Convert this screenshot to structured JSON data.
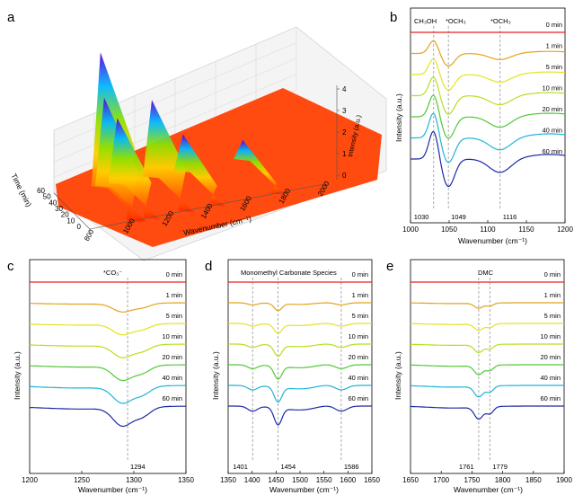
{
  "panel_letters": [
    "a",
    "b",
    "c",
    "d",
    "e"
  ],
  "chart_data": [
    {
      "panel": "a",
      "type": "surface3d",
      "xlabel": "Wavenumber (cm⁻¹)",
      "ylabel": "Time (min)",
      "zlabel": "Intensity (a.u.)",
      "x_ticks": [
        "800",
        "1000",
        "1200",
        "1400",
        "1600",
        "1800",
        "2000"
      ],
      "y_ticks": [
        "0",
        "10",
        "20",
        "30",
        "40",
        "50",
        "60"
      ],
      "z_ticks": [
        "0",
        "1",
        "2",
        "3",
        "4"
      ],
      "peaks_x": [
        1030,
        1049,
        1116,
        1294,
        1454,
        1761
      ],
      "peak_heights": [
        4.6,
        3.0,
        2.2,
        2.6,
        1.2,
        0.6
      ]
    },
    {
      "panel": "b",
      "type": "line",
      "xlabel": "Wavenumber (cm⁻¹)",
      "ylabel": "Intensity (a.u.)",
      "xlim": [
        1000,
        1200
      ],
      "x_ticks": [
        1000,
        1050,
        1100,
        1150,
        1200
      ],
      "series_names": [
        "0 min",
        "1 min",
        "5 min",
        "10 min",
        "20 min",
        "40 min",
        "60 min"
      ],
      "annotations": [
        "CH₃OH",
        "*OCH₃",
        "*OCH₃"
      ],
      "dashed_lines": [
        1030,
        1049,
        1116
      ],
      "dashed_labels": [
        "1030",
        "1049",
        "1116"
      ]
    },
    {
      "panel": "c",
      "type": "line",
      "xlabel": "Wavenumber (cm⁻¹)",
      "ylabel": "Intensity (a.u.)",
      "xlim": [
        1200,
        1350
      ],
      "x_ticks": [
        1200,
        1250,
        1300,
        1350
      ],
      "series_names": [
        "0 min",
        "1 min",
        "5 min",
        "10 min",
        "20 min",
        "40 min",
        "60 min"
      ],
      "annotations": [
        "*CO₃⁻"
      ],
      "dashed_lines": [
        1294
      ],
      "dashed_labels": [
        "1294"
      ]
    },
    {
      "panel": "d",
      "type": "line",
      "xlabel": "Wavenumber (cm⁻¹)",
      "ylabel": "Intensity (a.u.)",
      "xlim": [
        1350,
        1650
      ],
      "x_ticks": [
        1350,
        1400,
        1450,
        1500,
        1550,
        1600,
        1650
      ],
      "series_names": [
        "0 min",
        "1 min",
        "5 min",
        "10 min",
        "20 min",
        "40 min",
        "60 min"
      ],
      "annotations": [
        "Monomethyl Carbonate Species"
      ],
      "dashed_lines": [
        1401,
        1454,
        1586
      ],
      "dashed_labels": [
        "1401",
        "1454",
        "1586"
      ]
    },
    {
      "panel": "e",
      "type": "line",
      "xlabel": "Wavenumber (cm⁻¹)",
      "ylabel": "Intensity (a.u.)",
      "xlim": [
        1650,
        1900
      ],
      "x_ticks": [
        1650,
        1700,
        1750,
        1800,
        1850,
        1900
      ],
      "series_names": [
        "0 min",
        "1 min",
        "5 min",
        "10 min",
        "20 min",
        "40 min",
        "60 min"
      ],
      "annotations": [
        "DMC"
      ],
      "dashed_lines": [
        1761,
        1779
      ],
      "dashed_labels": [
        "1761",
        "1779"
      ]
    }
  ],
  "series_colors": [
    "#e8231e",
    "#e3a21a",
    "#e6e21c",
    "#b4e01e",
    "#4fc936",
    "#1fb5d6",
    "#1a2aa6"
  ],
  "surface_colors": [
    "#ff2a00",
    "#ff7a00",
    "#ffd000",
    "#8ee000",
    "#00b8ff",
    "#5a00d8"
  ]
}
